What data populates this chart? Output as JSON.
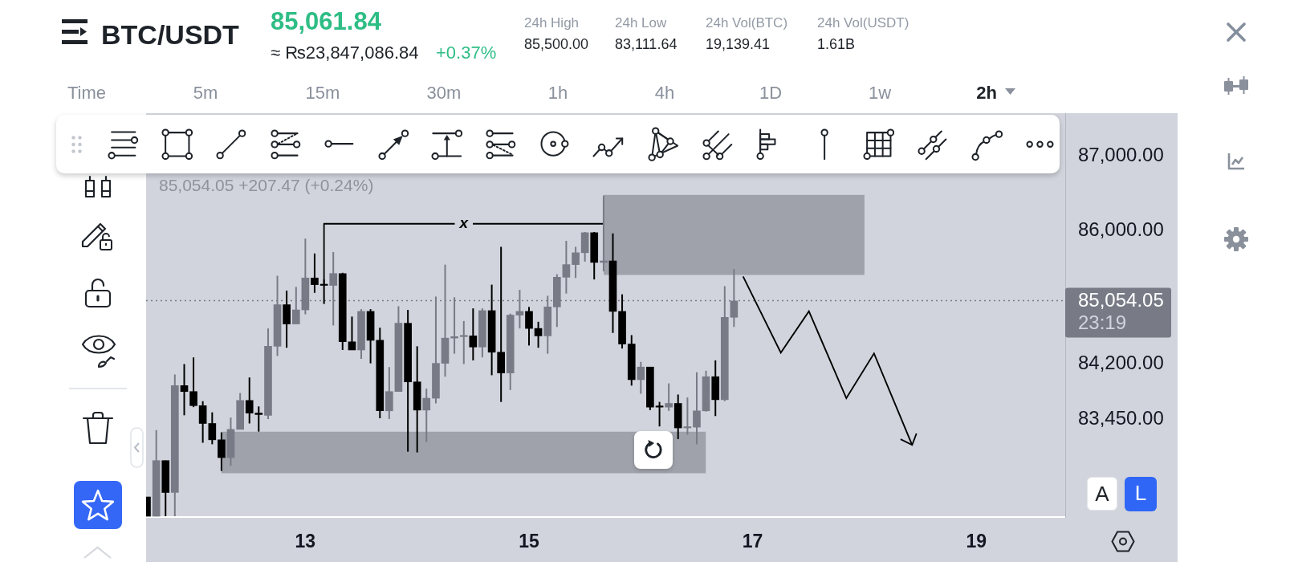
{
  "chart_data": {
    "type": "candlestick",
    "title": "BTC/USDT",
    "annotations": [
      "85,061.84",
      "≈ ₨23,847,086.84",
      "+0.37%",
      "24h High",
      "85,500.00",
      "24h Low",
      "83,111.64",
      "24h Vol(BTC)",
      "19,139.41",
      "24h Vol(USDT)",
      "1.61B",
      "Time",
      "5m",
      "15m",
      "30m",
      "1h",
      "4h",
      "1D",
      "1w",
      "2h",
      "85,054.05 +207.47 (+0.24%)",
      "23:19",
      "A",
      "L",
      {
        "text": "x",
        "x": 14.417,
        "y": 86090
      }
    ],
    "x": [
      11.583,
      11.667,
      11.75,
      11.833,
      11.917,
      12,
      12.083,
      12.167,
      12.25,
      12.333,
      12.417,
      12.5,
      12.583,
      12.667,
      12.75,
      12.833,
      12.917,
      13,
      13.083,
      13.167,
      13.25,
      13.333,
      13.417,
      13.5,
      13.583,
      13.667,
      13.75,
      13.833,
      13.917,
      14,
      14.083,
      14.167,
      14.25,
      14.333,
      14.417,
      14.5,
      14.583,
      14.667,
      14.75,
      14.833,
      14.917,
      15,
      15.083,
      15.167,
      15.25,
      15.333,
      15.417,
      15.5,
      15.583,
      15.667,
      15.75,
      15.833,
      15.917,
      16,
      16.083,
      16.167,
      16.25,
      16.333,
      16.417,
      16.5,
      16.583,
      16.667,
      16.75,
      16.833
    ],
    "ohlc": [
      [
        82410,
        82410,
        82150,
        82150
      ],
      [
        82150,
        83310,
        82150,
        82900
      ],
      [
        82900,
        82900,
        82150,
        82470
      ],
      [
        82470,
        84060,
        82150,
        83910
      ],
      [
        83910,
        84200,
        83510,
        83830
      ],
      [
        83830,
        84290,
        83620,
        83640
      ],
      [
        83640,
        83700,
        83140,
        83400
      ],
      [
        83400,
        83550,
        83120,
        83180
      ],
      [
        83180,
        83280,
        82760,
        82940
      ],
      [
        82940,
        83480,
        82830,
        83320
      ],
      [
        83320,
        83810,
        83320,
        83710
      ],
      [
        83710,
        84020,
        83400,
        83540
      ],
      [
        83540,
        83630,
        83290,
        83520
      ],
      [
        83510,
        84680,
        83460,
        84440
      ],
      [
        84440,
        85390,
        84310,
        85000
      ],
      [
        85000,
        85190,
        84420,
        84740
      ],
      [
        84740,
        85240,
        84740,
        84930
      ],
      [
        84930,
        85890,
        84870,
        85360
      ],
      [
        85360,
        85690,
        85160,
        85270
      ],
      [
        85270,
        85340,
        85010,
        85260
      ],
      [
        85260,
        85710,
        84720,
        85420
      ],
      [
        85420,
        85430,
        84390,
        84500
      ],
      [
        84500,
        84840,
        84390,
        84390
      ],
      [
        84390,
        84940,
        84270,
        84910
      ],
      [
        84910,
        84940,
        84210,
        84520
      ],
      [
        84520,
        84690,
        83470,
        83570
      ],
      [
        83570,
        84160,
        83460,
        83830
      ],
      [
        83830,
        84980,
        83830,
        84750
      ],
      [
        84750,
        84930,
        83020,
        83960
      ],
      [
        83960,
        84440,
        83010,
        83580
      ],
      [
        83580,
        83870,
        83150,
        83740
      ],
      [
        83740,
        85110,
        83670,
        84210
      ],
      [
        84210,
        85540,
        84030,
        84550
      ],
      [
        84550,
        85100,
        84340,
        84570
      ],
      [
        84570,
        84780,
        84200,
        84580
      ],
      [
        84580,
        84950,
        84250,
        84430
      ],
      [
        84430,
        84950,
        84290,
        84920
      ],
      [
        84920,
        85270,
        84050,
        84360
      ],
      [
        84360,
        85780,
        83690,
        84080
      ],
      [
        84080,
        84880,
        83850,
        84860
      ],
      [
        84860,
        85200,
        84680,
        84910
      ],
      [
        84910,
        84970,
        84450,
        84680
      ],
      [
        84680,
        84770,
        84420,
        84580
      ],
      [
        84580,
        85120,
        84340,
        84970
      ],
      [
        84970,
        85410,
        84700,
        85370
      ],
      [
        85370,
        85860,
        85150,
        85540
      ],
      [
        85540,
        85780,
        85360,
        85700
      ],
      [
        85700,
        85980,
        85580,
        85970
      ],
      [
        85970,
        85980,
        85340,
        85570
      ],
      [
        85570,
        86470,
        85450,
        85590
      ],
      [
        85590,
        85960,
        84620,
        84910
      ],
      [
        84910,
        85140,
        84410,
        84470
      ],
      [
        84470,
        84590,
        83910,
        83990
      ],
      [
        83990,
        84230,
        83800,
        84160
      ],
      [
        84160,
        84160,
        83580,
        83620
      ],
      [
        83630,
        83690,
        83360,
        83620
      ],
      [
        83620,
        83940,
        83570,
        83670
      ],
      [
        83670,
        83790,
        83190,
        83340
      ],
      [
        83340,
        83750,
        83250,
        83350
      ],
      [
        83350,
        84090,
        83120,
        83570
      ],
      [
        83570,
        84110,
        83560,
        84030
      ],
      [
        84030,
        84250,
        83500,
        83720
      ],
      [
        83720,
        85250,
        83700,
        84830
      ],
      [
        84830,
        85480,
        84700,
        85050
      ]
    ],
    "colors": [
      "#000000",
      "#787b86",
      "#000000",
      "#787b86",
      "#000000",
      "#000000",
      "#000000",
      "#000000",
      "#000000",
      "#787b86",
      "#787b86",
      "#000000",
      "#000000",
      "#787b86",
      "#787b86",
      "#000000",
      "#787b86",
      "#787b86",
      "#000000",
      "#000000",
      "#787b86",
      "#000000",
      "#000000",
      "#787b86",
      "#000000",
      "#000000",
      "#787b86",
      "#787b86",
      "#000000",
      "#000000",
      "#787b86",
      "#787b86",
      "#787b86",
      "#787b86",
      "#787b86",
      "#000000",
      "#787b86",
      "#000000",
      "#000000",
      "#787b86",
      "#787b86",
      "#000000",
      "#000000",
      "#787b86",
      "#787b86",
      "#787b86",
      "#787b86",
      "#787b86",
      "#000000",
      "#787b86",
      "#000000",
      "#000000",
      "#000000",
      "#787b86",
      "#000000",
      "#000000",
      "#787b86",
      "#000000",
      "#787b86",
      "#787b86",
      "#787b86",
      "#000000",
      "#787b86",
      "#787b86"
    ],
    "series": [
      {
        "type": "line",
        "x": [
          12.25,
          16.583
        ],
        "values": [
          null,
          null
        ],
        "lower": [
          82730,
          82730
        ],
        "upper": [
          83290,
          83290
        ],
        "color": "#9fa2aa"
      },
      {
        "type": "line",
        "x": [
          15.667,
          18
        ],
        "values": [
          null,
          null
        ],
        "lower": [
          85400,
          85400
        ],
        "upper": [
          86480,
          86480
        ],
        "color": "#9fa2aa"
      },
      {
        "type": "line",
        "x": [
          13.167,
          13.167,
          15.667
        ],
        "values": [
          85260,
          86090,
          86090
        ],
        "color": "#000000"
      }
    ],
    "xlim": [
      11.576,
      19.795
    ],
    "xticks": [
      13,
      15,
      17,
      19
    ],
    "ylim": [
      82140,
      87580
    ],
    "yticks": [
      {
        "value": 83450,
        "label": "83,450.00"
      },
      {
        "value": 84200,
        "label": "84,200.00"
      },
      {
        "value": 86000,
        "label": "86,000.00"
      },
      {
        "value": 87000,
        "label": "87,000.00"
      }
    ],
    "ref_lines": [
      {
        "axis": "y",
        "value": 85054.05,
        "label": "85,054.05",
        "color": "#787b86",
        "line_style": "dotted"
      }
    ]
  }
}
